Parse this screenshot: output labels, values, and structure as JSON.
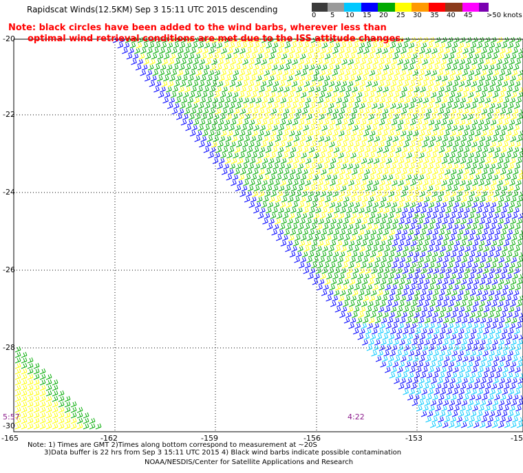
{
  "header": {
    "title": "Rapidscat Winds(12.5KM)  Sep  3 15:11 UTC 2015 descending",
    "note_line1": "Note: black circles have been added to the wind barbs, wherever less than",
    "note_line2": "optimal wind retrieval conditions are met due to the ISS attitude changes."
  },
  "legend": {
    "labels": [
      "0",
      "5",
      "10",
      "15",
      "20",
      "25",
      "30",
      "35",
      "40",
      "45",
      ">50 knots"
    ],
    "colors": [
      "#3a3a3a",
      "#9a9a9a",
      "#00c8ff",
      "#0000ff",
      "#00aa00",
      "#ffff00",
      "#ff9a00",
      "#ff0000",
      "#8b3a1a",
      "#ff00ff",
      "#7a00b0"
    ]
  },
  "axes": {
    "lat_labels": [
      "-20",
      "-22",
      "-24",
      "-26",
      "-28",
      "-30"
    ],
    "lon_labels": [
      "-165",
      "-162",
      "-159",
      "-156",
      "-153",
      "-15"
    ]
  },
  "times": {
    "left": "5:57",
    "right": "4:22"
  },
  "footer": {
    "line1": "Note: 1) Times are GMT 2)Times along bottom correspond to measurement at ~20S",
    "line2": "3)Data buffer is 22 hrs from Sep  3 15:11 UTC 2015 4) Black wind barbs indicate possible contamination",
    "line3": "NOAA/NESDIS/Center for Satellite Applications and Research"
  }
}
